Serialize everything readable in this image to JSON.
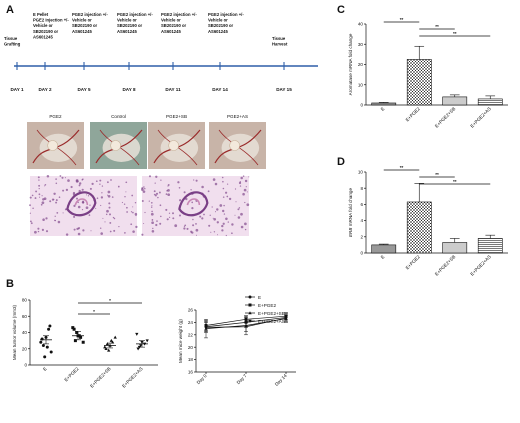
{
  "panels": {
    "A": "A",
    "B": "B",
    "C": "C",
    "D": "D"
  },
  "timeline": {
    "events": [
      {
        "day": "DAY 1",
        "note": [
          "Tissue",
          "Grafting"
        ]
      },
      {
        "day": "DAY 2",
        "note": [
          "E Pellet",
          "PGE2 injection +/-",
          "Vehicle or",
          "SB202190 or",
          "AS601245"
        ]
      },
      {
        "day": "DAY 5",
        "note": [
          "PGE2 injection +/-",
          "Vehicle or",
          "SB202190 or",
          "AS601245"
        ]
      },
      {
        "day": "DAY 8",
        "note": [
          "PGE2 injection +/-",
          "Vehicle or",
          "SB202190 or",
          "AS601245"
        ]
      },
      {
        "day": "DAY 11",
        "note": [
          "PGE2 injection +/-",
          "Vehicle or",
          "SB202190 or",
          "AS601245"
        ]
      },
      {
        "day": "DAY 14",
        "note": [
          "PGE2 injection +/-",
          "Vehicle or",
          "SB202190 or",
          "AS601245"
        ]
      },
      {
        "day": "DAY 15",
        "note": [
          "Tissue",
          "Harvest"
        ]
      }
    ]
  },
  "photos": {
    "labels": [
      "PGE2",
      "Control",
      "PGE2+SB",
      "PGE2+AS"
    ]
  },
  "colors": {
    "pink": "#c987b6",
    "purple": "#7a3f86",
    "tissue": "#c8b4a8",
    "vessel": "#9a2b2b"
  },
  "chart_data": [
    {
      "id": "C",
      "type": "bar",
      "ylabel": "Aromatase mRNA fold change",
      "ylim": [
        0,
        40
      ],
      "yticks": [
        0,
        10,
        20,
        30,
        40
      ],
      "categories": [
        "E",
        "E+PGE2",
        "E+PGE2+SB",
        "E+PGE2+AS"
      ],
      "values": [
        1,
        22.5,
        4,
        3
      ],
      "errors": [
        0.3,
        6.5,
        1,
        1.5
      ],
      "fills": [
        "#999999",
        "checker",
        "#cccccc",
        "stripe"
      ],
      "sig": [
        {
          "from": 0,
          "to": 1,
          "label": "**"
        },
        {
          "from": 1,
          "to": 2,
          "label": "**"
        },
        {
          "from": 1,
          "to": 3,
          "label": "**"
        }
      ]
    },
    {
      "id": "D",
      "type": "bar",
      "ylabel": "ERB mRNA fold change",
      "ylim": [
        0,
        10
      ],
      "yticks": [
        0,
        2,
        4,
        6,
        8,
        10
      ],
      "categories": [
        "E",
        "E+PGE2",
        "E+PGE2+SB",
        "E+PGE2+AS"
      ],
      "values": [
        1,
        6.3,
        1.3,
        1.8
      ],
      "errors": [
        0.1,
        2.3,
        0.5,
        0.4
      ],
      "fills": [
        "#999999",
        "checker",
        "#cccccc",
        "stripe"
      ],
      "sig": [
        {
          "from": 0,
          "to": 1,
          "label": "**"
        },
        {
          "from": 1,
          "to": 2,
          "label": "**"
        },
        {
          "from": 1,
          "to": 3,
          "label": "**"
        }
      ]
    },
    {
      "id": "B1",
      "type": "scatter",
      "ylabel": "Mean tumor volume (mm3)",
      "ylim": [
        0,
        80
      ],
      "yticks": [
        0,
        20,
        40,
        60,
        80
      ],
      "categories": [
        "E",
        "E+PGE2",
        "E+PGE2+SB",
        "E+PGE2+AS"
      ],
      "markers": [
        "circle",
        "square",
        "triangle",
        "triangle-down"
      ],
      "points": [
        [
          28,
          24,
          34,
          44,
          16,
          32,
          10,
          22,
          48
        ],
        [
          46,
          30,
          36,
          34,
          28,
          44,
          40,
          36
        ],
        [
          22,
          26,
          24,
          28,
          34,
          20,
          18,
          30
        ],
        [
          38,
          22,
          28,
          26,
          30,
          20,
          24
        ]
      ],
      "means": [
        31,
        36,
        24,
        26
      ],
      "sem": [
        5,
        5,
        3,
        4
      ],
      "sig": [
        {
          "from": 1,
          "to": 2,
          "label": "*"
        },
        {
          "from": 1,
          "to": 3,
          "label": "*"
        }
      ]
    },
    {
      "id": "B2",
      "type": "line",
      "ylabel": "Mean mice weight (g)",
      "ylim": [
        16,
        26
      ],
      "yticks": [
        16,
        18,
        20,
        22,
        24,
        26
      ],
      "x": [
        "Day 0",
        "Day 7",
        "Day 14"
      ],
      "series": [
        {
          "name": "E",
          "marker": "circle",
          "values": [
            23.3,
            24.0,
            24.8
          ],
          "err": [
            0.8,
            0.8,
            0.6
          ]
        },
        {
          "name": "E+PGE2",
          "marker": "square",
          "values": [
            23.5,
            24.5,
            25.0
          ],
          "err": [
            0.8,
            0.6,
            0.6
          ]
        },
        {
          "name": "E+PGE2+SB",
          "marker": "triangle",
          "values": [
            23.0,
            23.5,
            24.6
          ],
          "err": [
            1.5,
            1.5,
            0.6
          ]
        },
        {
          "name": "E+PGE2+AS",
          "marker": "triangle-down",
          "values": [
            23.2,
            23.3,
            24.7
          ],
          "err": [
            0.8,
            0.8,
            0.5
          ]
        }
      ]
    }
  ]
}
